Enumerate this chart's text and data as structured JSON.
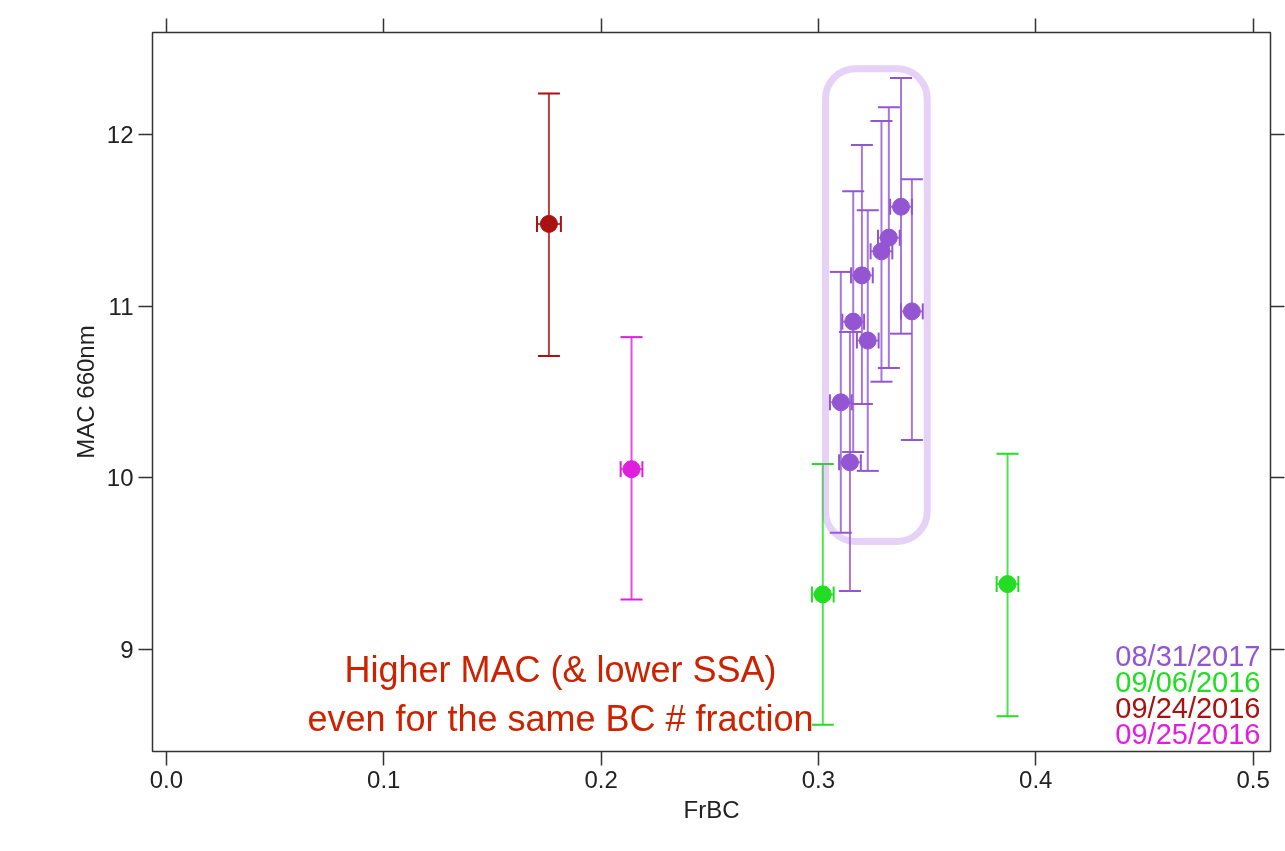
{
  "chart_data": {
    "type": "scatter",
    "xlabel": "FrBC",
    "ylabel": "MAC 660nm",
    "xlim": [
      -0.0064,
      0.508
    ],
    "ylim": [
      8.404,
      12.596
    ],
    "xticks": [
      {
        "value": 0,
        "label": "0.0"
      },
      0.1,
      0.2,
      0.3,
      0.4,
      0.5
    ],
    "yticks": [
      9,
      10,
      11,
      12
    ],
    "grid": false,
    "legend": "bottom right",
    "marker": "circle",
    "annotations": [
      "Higher MAC (& lower SSA)\neven for the same BC # fraction"
    ],
    "series": [
      {
        "name": "08/31/2017",
        "color": "#9455d2",
        "x": [
          0.338,
          0.3324,
          0.329,
          0.32,
          0.343,
          0.316,
          0.3227,
          0.3103,
          0.3145
        ],
        "values": [
          11.58,
          11.4,
          11.32,
          11.18,
          10.97,
          10.91,
          10.8,
          10.44,
          10.09
        ],
        "errors": [
          [
            10.84,
            12.33
          ],
          [
            10.64,
            12.16
          ],
          [
            10.56,
            12.08
          ],
          [
            10.43,
            11.94
          ],
          [
            10.22,
            11.74
          ],
          [
            10.15,
            11.67
          ],
          [
            10.04,
            11.56
          ],
          [
            9.68,
            11.2
          ],
          [
            9.34,
            10.85
          ]
        ],
        "xerrors": [
          0.005,
          0.005,
          0.005,
          0.005,
          0.005,
          0.005,
          0.005,
          0.005,
          0.005
        ]
      },
      {
        "name": "09/06/2016",
        "color": "#22dd22",
        "x": [
          0.302,
          0.387
        ],
        "values": [
          9.32,
          9.38
        ],
        "errors": [
          [
            8.56,
            10.08
          ],
          [
            8.61,
            10.14
          ]
        ],
        "xerrors": [
          0.005,
          0.005
        ]
      },
      {
        "name": "09/24/2016",
        "color": "#aa1111",
        "x": [
          0.176
        ],
        "values": [
          11.48
        ],
        "errors": [
          [
            10.71,
            12.24
          ]
        ],
        "xerrors": [
          0.0055
        ]
      },
      {
        "name": "09/25/2016",
        "color": "#e01ee0",
        "x": [
          0.214
        ],
        "values": [
          10.05
        ],
        "errors": [
          [
            9.29,
            10.82
          ]
        ],
        "xerrors": [
          0.005
        ]
      }
    ]
  }
}
